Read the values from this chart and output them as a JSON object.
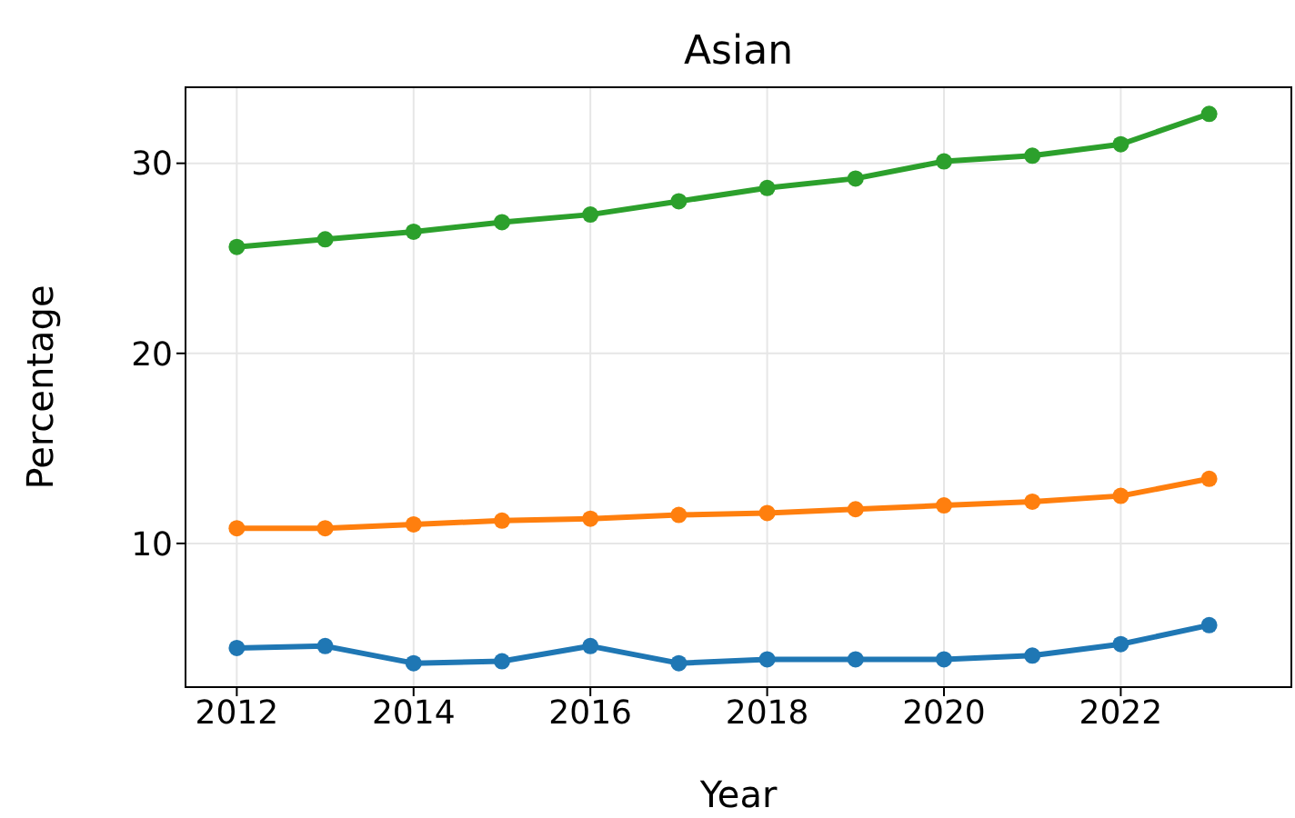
{
  "chart_data": {
    "type": "line",
    "title": "Asian",
    "xlabel": "Year",
    "ylabel": "Percentage",
    "x": [
      2012,
      2013,
      2014,
      2015,
      2016,
      2017,
      2018,
      2019,
      2020,
      2021,
      2022,
      2023
    ],
    "series": [
      {
        "color": "#1f77b4",
        "values": [
          4.5,
          4.6,
          3.7,
          3.8,
          4.6,
          3.7,
          3.9,
          3.9,
          3.9,
          4.1,
          4.7,
          5.7
        ]
      },
      {
        "color": "#ff7f0e",
        "values": [
          10.8,
          10.8,
          11.0,
          11.2,
          11.3,
          11.5,
          11.6,
          11.8,
          12.0,
          12.2,
          12.5,
          13.4
        ]
      },
      {
        "color": "#2ca02c",
        "values": [
          25.6,
          26.0,
          26.4,
          26.9,
          27.3,
          28.0,
          28.7,
          29.2,
          30.1,
          30.4,
          31.0,
          32.6
        ]
      }
    ],
    "xlim": [
      2011.42,
      2023.93
    ],
    "xticks": [
      2012,
      2014,
      2016,
      2018,
      2020,
      2022
    ],
    "ylim": [
      2.44,
      34.0
    ],
    "yticks": [
      10,
      20,
      30
    ],
    "grid": true,
    "marker": "circle",
    "line_style": "solid",
    "legend": false
  }
}
